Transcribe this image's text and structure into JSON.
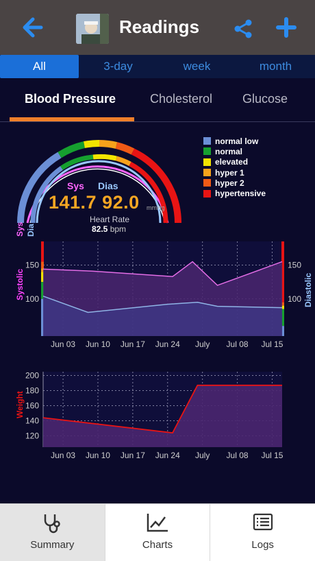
{
  "header": {
    "title": "Readings",
    "back_icon": "back-arrow-icon",
    "share_icon": "share-icon",
    "add_icon": "plus-icon",
    "accent": "#2b8cf0"
  },
  "range_tabs": [
    "All",
    "3-day",
    "week",
    "month"
  ],
  "metric_tabs": [
    "Blood Pressure",
    "Cholesterol",
    "Glucose"
  ],
  "legend": [
    {
      "label": "normal low",
      "color": "#6b8fd6"
    },
    {
      "label": "normal",
      "color": "#16a02f"
    },
    {
      "label": "elevated",
      "color": "#f2e400"
    },
    {
      "label": "hyper 1",
      "color": "#f7a21b"
    },
    {
      "label": "hyper 2",
      "color": "#f05a16"
    },
    {
      "label": "hypertensive",
      "color": "#e81414"
    }
  ],
  "gauge": {
    "sys_label": "Sys",
    "dias_label": "Dias",
    "reading": "141.7 92.0",
    "unit": "mmHg",
    "hr_label": "Heart Rate",
    "hr_value": "82.5",
    "hr_unit": "bpm",
    "left_sys": "Sys",
    "left_dias": "Dia"
  },
  "bp_chart": {
    "ylabel_left": "Systolic",
    "ylabel_right": "Diastolic",
    "left_ticks": [
      "150",
      "100"
    ],
    "right_ticks": [
      "150",
      "100"
    ],
    "x_ticks": [
      "Jun 03",
      "Jun 10",
      "Jun 17",
      "Jun 24",
      "July",
      "Jul 08",
      "Jul 15"
    ]
  },
  "weight_chart": {
    "ylabel": "Weight",
    "y_ticks": [
      "200",
      "180",
      "160",
      "140",
      "120"
    ],
    "x_ticks": [
      "Jun 03",
      "Jun 10",
      "Jun 17",
      "Jun 24",
      "July",
      "Jul 08",
      "Jul 15"
    ]
  },
  "chart_data": [
    {
      "type": "area",
      "series": [
        {
          "name": "Systolic",
          "x": [
            "May 30",
            "Jun 09",
            "Jun 25",
            "Jun 29",
            "Jul 04",
            "Jul 17"
          ],
          "values": [
            144,
            141,
            133,
            155,
            120,
            155
          ]
        },
        {
          "name": "Diastolic",
          "x": [
            "May 30",
            "Jun 08",
            "Jun 24",
            "Jun 30",
            "Jul 04",
            "Jul 17"
          ],
          "values": [
            104,
            80,
            92,
            95,
            89,
            87
          ]
        }
      ],
      "ylim": [
        45,
        185
      ],
      "x_ticks": [
        "Jun 03",
        "Jun 10",
        "Jun 17",
        "Jun 24",
        "July",
        "Jul 08",
        "Jul 15"
      ]
    },
    {
      "type": "area",
      "series": [
        {
          "name": "Weight",
          "x": [
            "May 30",
            "Jun 25",
            "Jun 30",
            "Jul 17"
          ],
          "values": [
            144,
            124,
            187,
            187
          ]
        }
      ],
      "ylim": [
        105,
        205
      ],
      "x_ticks": [
        "Jun 03",
        "Jun 10",
        "Jun 17",
        "Jun 24",
        "July",
        "Jul 08",
        "Jul 15"
      ]
    }
  ],
  "bottom_tabs": [
    {
      "label": "Summary",
      "icon": "stethoscope-icon"
    },
    {
      "label": "Charts",
      "icon": "chart-icon"
    },
    {
      "label": "Logs",
      "icon": "list-icon"
    }
  ]
}
